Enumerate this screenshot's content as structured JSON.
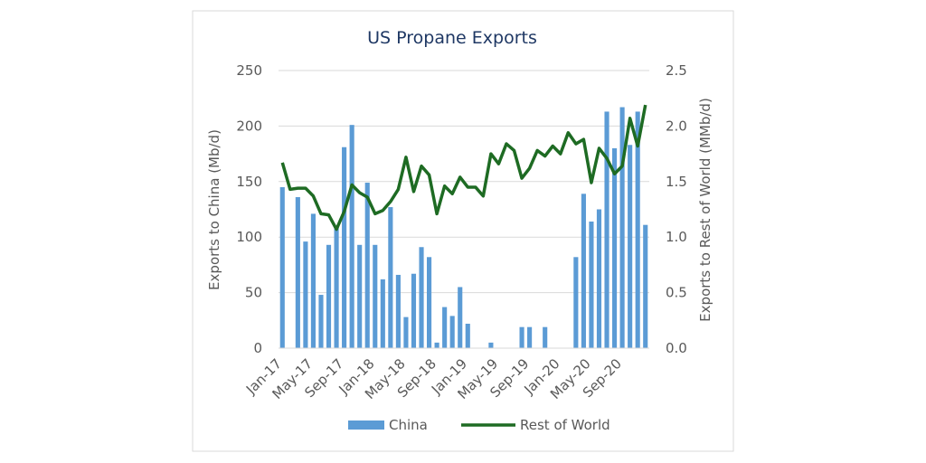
{
  "chart_data": {
    "type": "bar-line",
    "title": "US Propane Exports",
    "y_label": "Exports to China (Mb/d)",
    "y2_label": "Exports to Rest of World (MMb/d)",
    "categories": [
      "Jan-17",
      null,
      null,
      null,
      "May-17",
      null,
      null,
      null,
      "Sep-17",
      null,
      null,
      null,
      "Jan-18",
      null,
      null,
      null,
      "May-18",
      null,
      null,
      null,
      "Sep-18",
      null,
      null,
      null,
      "Jan-19",
      null,
      null,
      null,
      "May-19",
      null,
      null,
      null,
      "Sep-19",
      null,
      null,
      null,
      "Jan-20",
      null,
      null,
      null,
      "May-20",
      null,
      null,
      null,
      "Sep-20",
      null,
      null,
      null
    ],
    "series": [
      {
        "name": "China",
        "type": "bar",
        "color": "#5b9bd5",
        "values": [
          145,
          0,
          136,
          96,
          121,
          48,
          93,
          110,
          181,
          201,
          93,
          149,
          93,
          62,
          127,
          66,
          28,
          67,
          91,
          82,
          5,
          37,
          29,
          55,
          22,
          0,
          0,
          5,
          0,
          0,
          0,
          19,
          19,
          0,
          19,
          0,
          0,
          0,
          82,
          139,
          114,
          125,
          213,
          180,
          217,
          183,
          213,
          111
        ]
      },
      {
        "name": "Rest of World",
        "type": "line",
        "axis": "y2",
        "color": "#1e6b23",
        "values": [
          1.67,
          1.43,
          1.44,
          1.44,
          1.37,
          1.21,
          1.2,
          1.07,
          1.23,
          1.47,
          1.4,
          1.36,
          1.21,
          1.24,
          1.32,
          1.43,
          1.72,
          1.41,
          1.64,
          1.56,
          1.21,
          1.46,
          1.39,
          1.54,
          1.45,
          1.45,
          1.37,
          1.75,
          1.66,
          1.84,
          1.78,
          1.53,
          1.62,
          1.78,
          1.73,
          1.82,
          1.75,
          1.94,
          1.84,
          1.88,
          1.49,
          1.8,
          1.71,
          1.57,
          1.64,
          2.07,
          1.82,
          2.19
        ]
      }
    ],
    "ylim": [
      0,
      250
    ],
    "yticks": [
      0,
      50,
      100,
      150,
      200,
      250
    ],
    "y2lim": [
      0,
      2.5
    ],
    "y2ticks": [
      {
        "value": 0,
        "label": "0.0"
      },
      {
        "value": 0.5,
        "label": "0.5"
      },
      {
        "value": 1,
        "label": "1.0"
      },
      {
        "value": 1.5,
        "label": "1.5"
      },
      {
        "value": 2,
        "label": "2.0"
      },
      {
        "value": 2.5,
        "label": "2.5"
      }
    ],
    "grid": true
  }
}
